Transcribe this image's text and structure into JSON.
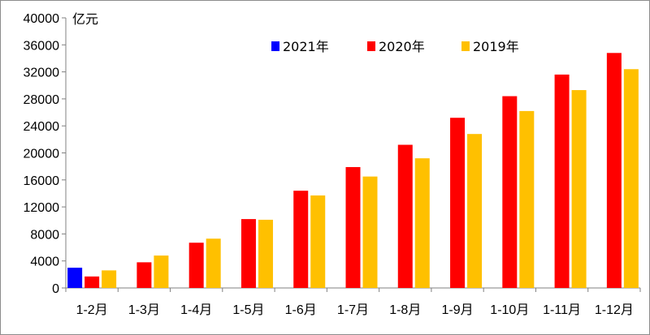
{
  "chart_data": {
    "type": "bar",
    "unit_label": "亿元",
    "categories": [
      "1-2月",
      "1-3月",
      "1-4月",
      "1-5月",
      "1-6月",
      "1-7月",
      "1-8月",
      "1-9月",
      "1-10月",
      "1-11月",
      "1-12月"
    ],
    "series": [
      {
        "name": "2021年",
        "color": "#0000ff",
        "values": [
          3000,
          null,
          null,
          null,
          null,
          null,
          null,
          null,
          null,
          null,
          null
        ]
      },
      {
        "name": "2020年",
        "color": "#ff0000",
        "values": [
          1700,
          3800,
          6700,
          10200,
          14400,
          17900,
          21200,
          25200,
          28400,
          31600,
          34800
        ]
      },
      {
        "name": "2019年",
        "color": "#ffc000",
        "values": [
          2600,
          4800,
          7300,
          10100,
          13700,
          16500,
          19200,
          22800,
          26200,
          29300,
          32400
        ]
      }
    ],
    "y_ticks": [
      "0",
      "4000",
      "8000",
      "12000",
      "16000",
      "20000",
      "24000",
      "28000",
      "32000",
      "36000",
      "40000"
    ],
    "ylim": [
      0,
      40000
    ],
    "legend_position": "top-center",
    "grid": false
  }
}
